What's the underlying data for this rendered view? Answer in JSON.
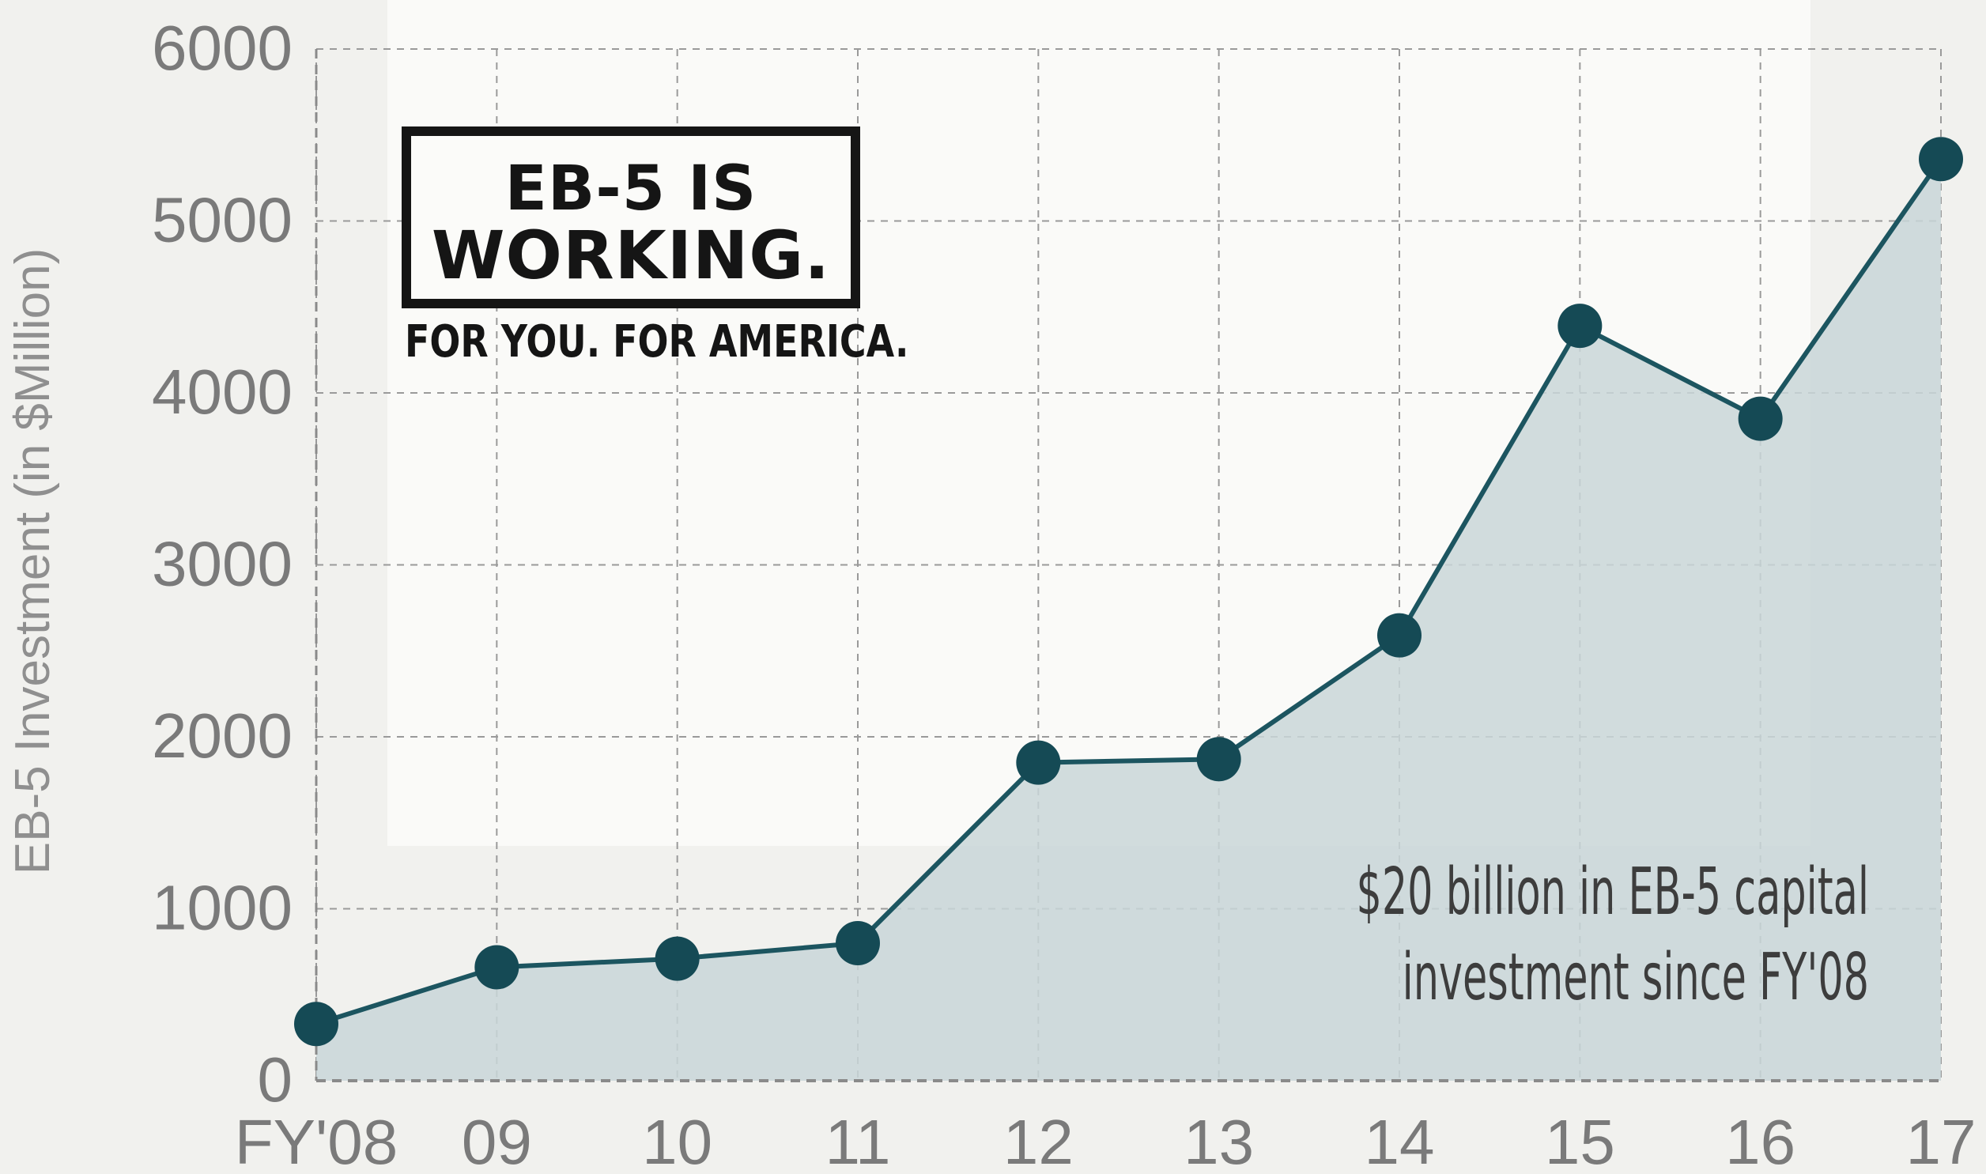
{
  "chart_data": {
    "type": "area",
    "categories": [
      "FY'08",
      "09",
      "10",
      "11",
      "12",
      "13",
      "14",
      "15",
      "16",
      "17"
    ],
    "values": [
      330,
      660,
      710,
      800,
      1850,
      1870,
      2590,
      4390,
      3850,
      5360
    ],
    "ylabel": "EB-5 Investment (in $Million)",
    "xlabel": "",
    "ylim": [
      0,
      6000
    ],
    "yticks": [
      0,
      1000,
      2000,
      3000,
      4000,
      5000,
      6000
    ],
    "grid": true,
    "colors": {
      "line": "#1c5560",
      "marker": "#154a55",
      "fill": "#c9d6d8",
      "grid": "#9a9a9a"
    }
  },
  "logo": {
    "line1": "EB-5 IS",
    "line2": "WORKING.",
    "tagline": "FOR YOU. FOR AMERICA."
  },
  "annotation": {
    "line1": "$20 billion in EB-5 capital",
    "line2": "investment since FY'08"
  }
}
